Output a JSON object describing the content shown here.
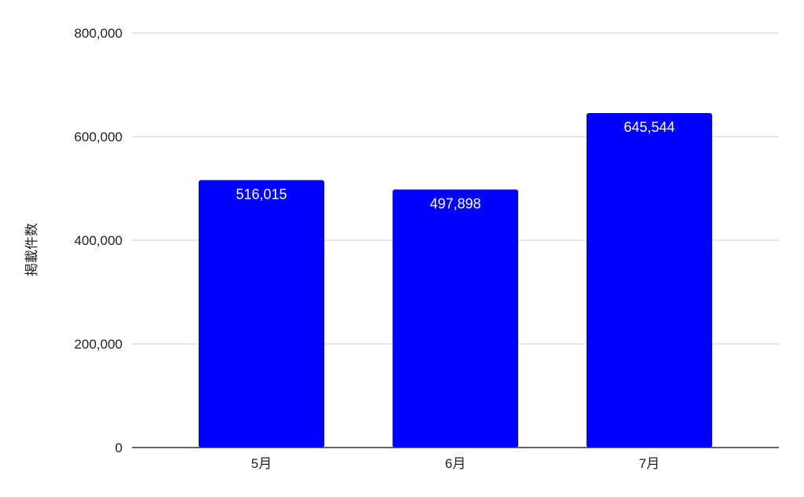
{
  "chart_data": {
    "type": "bar",
    "title": "",
    "xlabel": "",
    "ylabel": "掲載件数",
    "categories": [
      "5月",
      "6月",
      "7月"
    ],
    "series": [
      {
        "values": [
          516015,
          497898,
          645544
        ]
      }
    ],
    "data_labels": [
      "516,015",
      "497,898",
      "645,544"
    ],
    "ylim": [
      0,
      800000
    ],
    "y_ticks": [
      0,
      200000,
      400000,
      600000,
      800000
    ],
    "y_tick_labels": [
      "0",
      "200,000",
      "400,000",
      "600,000",
      "800,000"
    ],
    "grid": true,
    "legend": "none",
    "colors": {
      "bar": "#0000ff",
      "grid": "#cccccc",
      "axis": "#333333",
      "text": "#222222",
      "data_label": "#ffffff"
    }
  }
}
